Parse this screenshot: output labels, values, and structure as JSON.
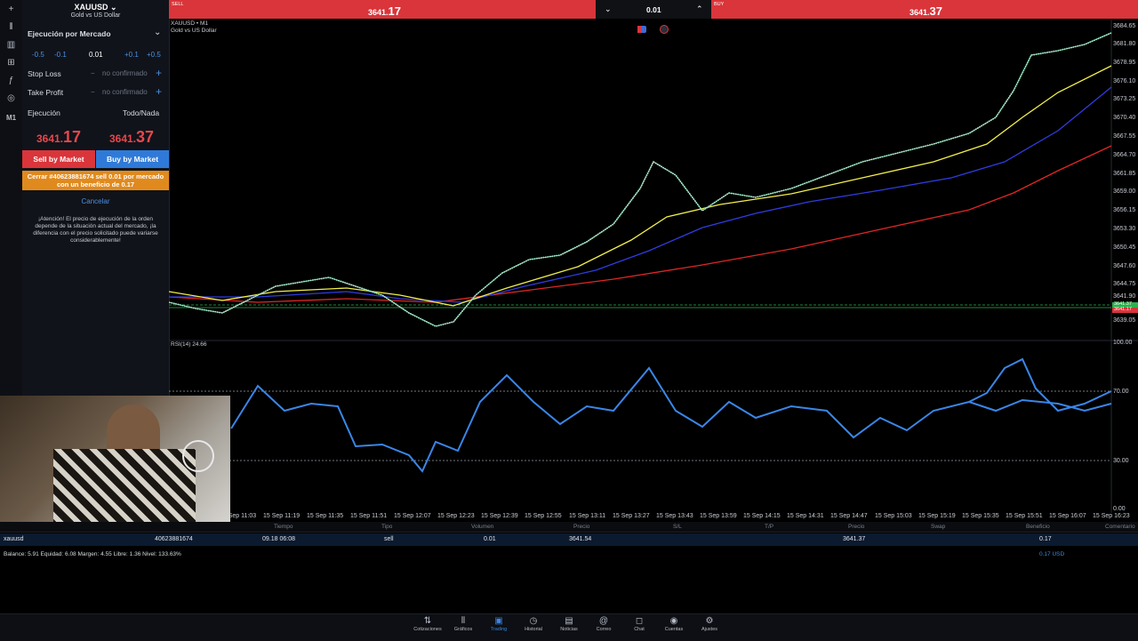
{
  "toolbar": {
    "icons": [
      "crosshair-icon",
      "candles-icon",
      "bars-icon",
      "indicators-icon",
      "function-icon",
      "objects-icon"
    ],
    "timeframe": "M1"
  },
  "order_panel": {
    "symbol": "XAUUSD",
    "symbol_desc": "Gold vs US Dollar",
    "execution_title": "Ejecución por Mercado",
    "steps": [
      "-0.5",
      "-0.1",
      "0.01",
      "+0.1",
      "+0.5"
    ],
    "stop_loss_label": "Stop Loss",
    "take_profit_label": "Take Profit",
    "not_confirmed": "no confirmado",
    "execution_label": "Ejecución",
    "execution_value": "Todo/Nada",
    "sell_price_main": "3641.",
    "sell_price_big": "17",
    "buy_price_main": "3641.",
    "buy_price_big": "37",
    "sell_button": "Sell by Market",
    "buy_button": "Buy by Market",
    "close_text": "Cerrar #40623881674 sell 0.01 por mercado con un beneficio de 0.17",
    "cancel": "Cancelar",
    "warning": "¡Atención! El precio de ejecución de la orden depende de la situación actual del mercado, ¡la diferencia con el precio solicitado puede variarse considerablemente!"
  },
  "topbar": {
    "sell_label": "SELL",
    "sell_main": "3641.",
    "sell_big": "17",
    "volume": "0.01",
    "buy_label": "BUY",
    "buy_main": "3641.",
    "buy_big": "37"
  },
  "chart": {
    "title": "XAUUSD • M1",
    "subtitle": "Gold vs US Dollar",
    "price_ticks": [
      "3684.65",
      "3681.80",
      "3678.95",
      "3676.10",
      "3673.25",
      "3670.40",
      "3667.55",
      "3664.70",
      "3661.85",
      "3659.00",
      "3656.15",
      "3653.30",
      "3650.45",
      "3647.60",
      "3644.75",
      "3641.90",
      "3639.05"
    ],
    "rsi_label": "RSI(14) 24.66",
    "rsi_ticks": [
      "100.00",
      "70.00",
      "30.00",
      "0.00"
    ],
    "time_ticks": [
      "15 Sep 11:03",
      "15 Sep 11:19",
      "15 Sep 11:35",
      "15 Sep 11:51",
      "15 Sep 12:07",
      "15 Sep 12:23",
      "15 Sep 12:39",
      "15 Sep 12:55",
      "15 Sep 13:11",
      "15 Sep 13:27",
      "15 Sep 13:43",
      "15 Sep 13:59",
      "15 Sep 14:15",
      "15 Sep 14:31",
      "15 Sep 14:47",
      "15 Sep 15:03",
      "15 Sep 15:19",
      "15 Sep 15:35",
      "15 Sep 15:51",
      "15 Sep 16:07",
      "15 Sep 16:23"
    ],
    "price_tag_1": "3641.37",
    "price_tag_2": "3641.17"
  },
  "positions": {
    "headers": [
      "Tiempo",
      "Tipo",
      "Volumen",
      "Precio",
      "S/L",
      "T/P",
      "Precio",
      "Swap",
      "Beneficio",
      "Comentario"
    ],
    "row": {
      "symbol": "xauusd",
      "ticket": "40623881674",
      "time": "09.18 06:08",
      "type": "sell",
      "volume": "0.01",
      "price": "3641.54",
      "price2": "3641.37",
      "profit": "0.17"
    },
    "balance": "Balance: 5.91  Equidad: 6.08  Margen: 4.55  Libre: 1.36  Nivel: 133.63%",
    "balance_profit": "0.17  USD"
  },
  "nav": [
    {
      "label": "Cotizaciones",
      "icon": "quotes-icon",
      "glyph": "⇅"
    },
    {
      "label": "Gráficos",
      "icon": "charts-icon",
      "glyph": "⫴"
    },
    {
      "label": "Trading",
      "icon": "trading-icon",
      "glyph": "▣"
    },
    {
      "label": "Historial",
      "icon": "history-icon",
      "glyph": "◷"
    },
    {
      "label": "Noticias",
      "icon": "news-icon",
      "glyph": "▤"
    },
    {
      "label": "Correo",
      "icon": "mail-icon",
      "glyph": "@"
    },
    {
      "label": "Chat",
      "icon": "chat-icon",
      "glyph": "◻"
    },
    {
      "label": "Cuentas",
      "icon": "accounts-icon",
      "glyph": "◉"
    },
    {
      "label": "Ajustes",
      "icon": "settings-icon",
      "glyph": "⚙"
    }
  ]
}
